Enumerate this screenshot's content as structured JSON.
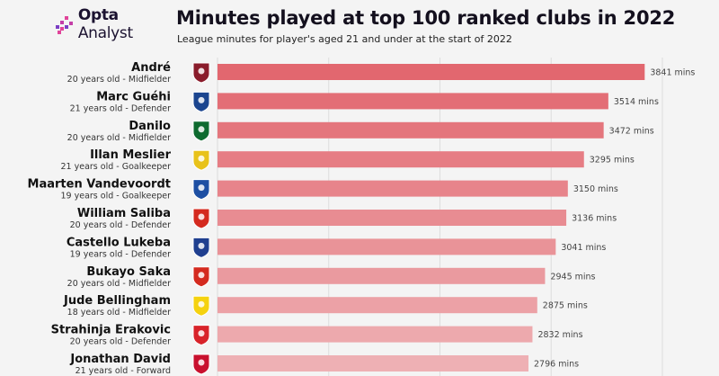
{
  "brand": {
    "name_bold": "Opta",
    "name_light": "Analyst"
  },
  "header": {
    "title": "Minutes played at top 100 ranked clubs in 2022",
    "subtitle": "League minutes for player's aged 21 and under at the start of 2022"
  },
  "chart_data": {
    "type": "bar",
    "orientation": "horizontal",
    "title": "Minutes played at top 100 ranked clubs in 2022",
    "subtitle": "League minutes for player's aged 21 and under at the start of 2022",
    "value_suffix": " mins",
    "xlim": [
      0,
      4000
    ],
    "grid": true,
    "colors": {
      "start": "#e2676f",
      "end": "#eeb0b4"
    },
    "rows": [
      {
        "name": "André",
        "info": "20 years old - Midfielder",
        "club_icon": "fluminense-crest-icon",
        "crest_color": "#8a1c2b",
        "value": 3841
      },
      {
        "name": "Marc Guéhi",
        "info": "21 years old - Defender",
        "club_icon": "crystal-palace-crest-icon",
        "crest_color": "#1b458f",
        "value": 3514
      },
      {
        "name": "Danilo",
        "info": "20 years old - Midfielder",
        "club_icon": "palmeiras-crest-icon",
        "crest_color": "#0e6b2f",
        "value": 3472
      },
      {
        "name": "Illan Meslier",
        "info": "21 years old - Goalkeeper",
        "club_icon": "leeds-crest-icon",
        "crest_color": "#e8c21a",
        "value": 3295
      },
      {
        "name": "Maarten Vandevoordt",
        "info": "19 years old - Goalkeeper",
        "club_icon": "genk-crest-icon",
        "crest_color": "#1d4fa3",
        "value": 3150
      },
      {
        "name": "William Saliba",
        "info": "20 years old - Defender",
        "club_icon": "arsenal-crest-icon",
        "crest_color": "#d42a1f",
        "value": 3136
      },
      {
        "name": "Castello Lukeba",
        "info": "19 years old - Defender",
        "club_icon": "lyon-crest-icon",
        "crest_color": "#1f3f8f",
        "value": 3041
      },
      {
        "name": "Bukayo Saka",
        "info": "20 years old - Midfielder",
        "club_icon": "arsenal-crest-icon",
        "crest_color": "#d42a1f",
        "value": 2945
      },
      {
        "name": "Jude Bellingham",
        "info": "18 years old - Midfielder",
        "club_icon": "dortmund-crest-icon",
        "crest_color": "#f5d20f",
        "value": 2875
      },
      {
        "name": "Strahinja Erakovic",
        "info": "20 years old - Defender",
        "club_icon": "red-star-crest-icon",
        "crest_color": "#d8232a",
        "value": 2832
      },
      {
        "name": "Jonathan David",
        "info": "21 years old - Forward",
        "club_icon": "lille-crest-icon",
        "crest_color": "#c8102e",
        "value": 2796
      }
    ]
  }
}
